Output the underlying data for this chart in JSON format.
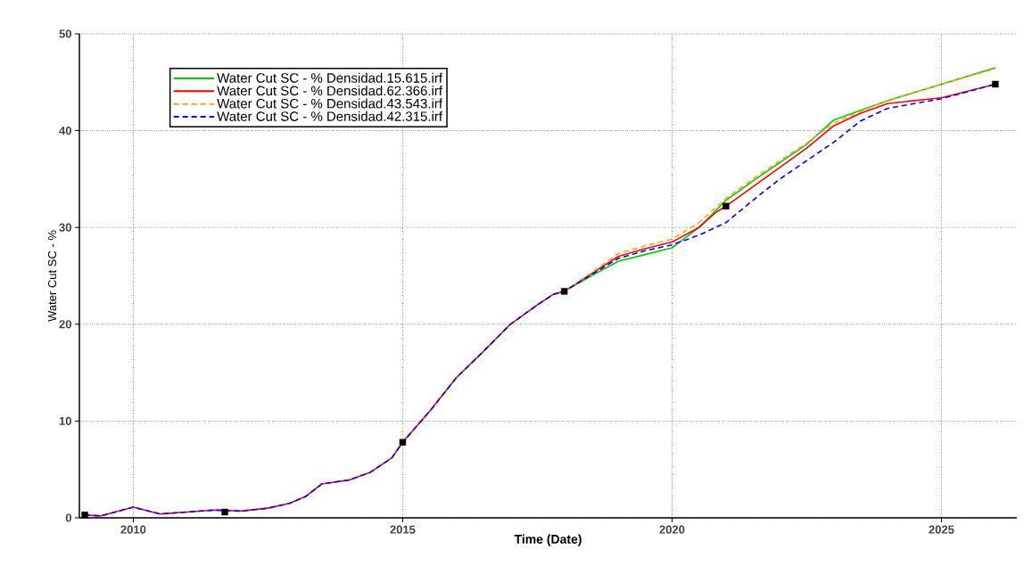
{
  "chart_data": {
    "type": "line",
    "xlabel": "Time (Date)",
    "ylabel": "Water Cut SC - %",
    "xlim": [
      2009,
      2026.4
    ],
    "ylim": [
      0,
      50
    ],
    "xticks": [
      2010,
      2015,
      2020,
      2025
    ],
    "yticks": [
      0,
      10,
      20,
      30,
      40,
      50
    ],
    "grid": true,
    "legend": "top left",
    "series": [
      {
        "name": "Water Cut SC - % Densidad.15.615.irf",
        "color": "#00cc00",
        "line_style": "solid",
        "marker": "none",
        "x": [
          2018,
          2018.5,
          2019,
          2019.5,
          2020,
          2020.5,
          2021,
          2021.5,
          2022,
          2022.5,
          2023,
          2023.5,
          2024,
          2025,
          2026
        ],
        "values": [
          23.4,
          25,
          26.5,
          27.2,
          27.9,
          30,
          32.8,
          34.8,
          36.7,
          38.6,
          41.1,
          42.1,
          43.1,
          44.8,
          46.5
        ]
      },
      {
        "name": "Water Cut SC - % Densidad.62.366.irf",
        "color": "#ff0000",
        "line_style": "solid",
        "marker": "none",
        "x": [
          2009.1,
          2009.4,
          2010,
          2010.5,
          2011,
          2011.5,
          2012,
          2012.5,
          2012.9,
          2013.2,
          2013.5,
          2014,
          2014.4,
          2014.8,
          2015,
          2015.5,
          2016,
          2016.5,
          2017,
          2017.5,
          2017.8,
          2018,
          2018.5,
          2019,
          2019.5,
          2020,
          2020.5,
          2020.8,
          2021,
          2021.5,
          2022,
          2022.5,
          2023,
          2023.5,
          2024,
          2025,
          2026
        ],
        "values": [
          0.3,
          0.2,
          1.1,
          0.4,
          0.6,
          0.8,
          0.7,
          1.0,
          1.5,
          2.2,
          3.5,
          3.9,
          4.7,
          6.2,
          7.8,
          11,
          14.5,
          17.2,
          20,
          22,
          23.1,
          23.4,
          25.2,
          27,
          27.8,
          28.5,
          30,
          31.5,
          32.2,
          34.2,
          36.2,
          38.2,
          40.5,
          41.8,
          42.8,
          43.4,
          44.8
        ]
      },
      {
        "name": "Water Cut SC - % Densidad.43.543.irf",
        "color": "#ffa020",
        "line_style": "dashed",
        "marker": "none",
        "x": [
          2018,
          2018.5,
          2019,
          2019.5,
          2020,
          2020.5,
          2021,
          2021.5,
          2022,
          2022.5,
          2023,
          2023.5,
          2024,
          2025,
          2026
        ],
        "values": [
          23.4,
          25.3,
          27.3,
          28.1,
          28.8,
          30.5,
          33,
          35,
          36.9,
          38.7,
          40.8,
          42,
          43.1,
          44.8,
          46.4
        ]
      },
      {
        "name": "Water Cut SC - % Densidad.42.315.irf",
        "color": "#0000ff",
        "line_style": "dashed",
        "marker": "none",
        "x": [
          2009.1,
          2009.4,
          2010,
          2010.5,
          2011,
          2011.5,
          2012,
          2012.5,
          2012.9,
          2013.2,
          2013.5,
          2014,
          2014.4,
          2014.8,
          2015,
          2015.5,
          2016,
          2016.5,
          2017,
          2017.5,
          2017.8,
          2018,
          2018.5,
          2019,
          2019.5,
          2020,
          2020.5,
          2021,
          2021.5,
          2022,
          2022.5,
          2023,
          2023.5,
          2024,
          2025,
          2026
        ],
        "values": [
          0.3,
          0.2,
          1.1,
          0.4,
          0.6,
          0.8,
          0.7,
          1.0,
          1.5,
          2.2,
          3.5,
          3.9,
          4.7,
          6.2,
          7.8,
          11,
          14.5,
          17.2,
          20,
          22,
          23.1,
          23.4,
          25.1,
          26.8,
          27.6,
          28.2,
          29.2,
          30.5,
          32.8,
          35,
          36.9,
          38.8,
          41,
          42.3,
          43.3,
          44.8
        ]
      },
      {
        "type": "scatter",
        "color": "#000000",
        "marker": "square",
        "x": [
          2009.1,
          2011.7,
          2015,
          2018,
          2021,
          2026
        ],
        "values": [
          0.3,
          0.6,
          7.8,
          23.4,
          32.2,
          44.8
        ]
      }
    ]
  }
}
